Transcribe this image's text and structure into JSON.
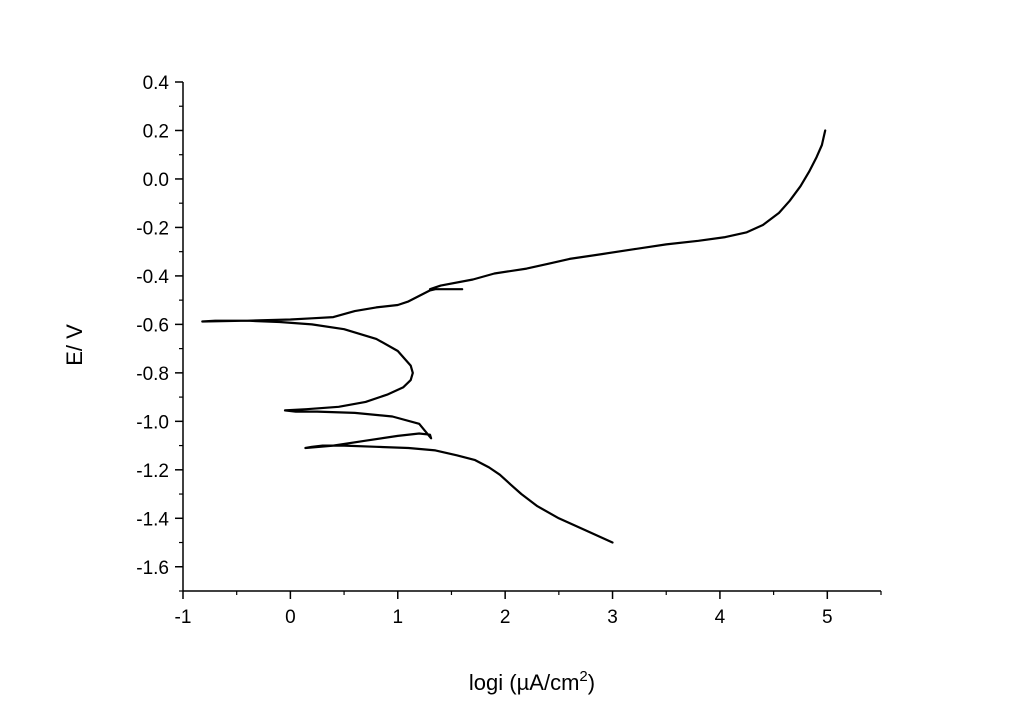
{
  "chart_data": {
    "type": "line",
    "title": "",
    "xlabel": {
      "base": "logi (µA/cm",
      "sup": "2",
      "tail": ")"
    },
    "ylabel": "E/ V",
    "xlim": [
      -1,
      5.5
    ],
    "ylim": [
      -1.7,
      0.4
    ],
    "xticks": [
      {
        "value": -1,
        "label": "-1"
      },
      {
        "value": 0,
        "label": "0"
      },
      {
        "value": 1,
        "label": "1"
      },
      {
        "value": 2,
        "label": "2"
      },
      {
        "value": 3,
        "label": "3"
      },
      {
        "value": 4,
        "label": "4"
      },
      {
        "value": 5,
        "label": "5"
      }
    ],
    "yticks": [
      {
        "value": 0.4,
        "label": "0.4"
      },
      {
        "value": 0.2,
        "label": "0.2"
      },
      {
        "value": 0.0,
        "label": "0.0"
      },
      {
        "value": -0.2,
        "label": "-0.2"
      },
      {
        "value": -0.4,
        "label": "-0.4"
      },
      {
        "value": -0.6,
        "label": "-0.6"
      },
      {
        "value": -0.8,
        "label": "-0.8"
      },
      {
        "value": -1.0,
        "label": "-1.0"
      },
      {
        "value": -1.2,
        "label": "-1.2"
      },
      {
        "value": -1.4,
        "label": "-1.4"
      },
      {
        "value": -1.6,
        "label": "-1.6"
      }
    ],
    "minor_x_step": 0.5,
    "minor_y_step": 0.1,
    "grid": false,
    "line_color": "#000000",
    "series": [
      {
        "x": [
          3.0,
          2.75,
          2.5,
          2.3,
          2.15,
          2.05,
          1.95,
          1.85,
          1.72,
          1.55,
          1.35,
          1.1,
          0.8,
          0.5,
          0.3,
          0.2,
          0.14,
          0.4,
          0.7,
          1.0,
          1.2,
          1.3,
          1.31,
          1.2,
          0.95,
          0.6,
          0.25,
          0.05,
          -0.05,
          0.15,
          0.45,
          0.7,
          0.9,
          1.05,
          1.12,
          1.14,
          1.12,
          1.0,
          0.8,
          0.5,
          0.2,
          -0.1,
          -0.4,
          -0.7,
          -0.82,
          -0.4,
          0.0,
          0.2,
          0.4,
          0.6,
          0.8,
          1.0,
          1.1,
          1.3,
          1.35,
          1.6,
          1.3,
          1.4,
          1.7,
          1.9,
          2.2,
          2.4,
          2.6,
          2.9,
          3.2,
          3.5,
          3.8,
          4.05,
          4.25,
          4.4,
          4.55,
          4.65,
          4.75,
          4.83,
          4.9,
          4.95,
          4.97,
          4.98
        ],
        "y": [
          -1.5,
          -1.45,
          -1.4,
          -1.35,
          -1.3,
          -1.26,
          -1.22,
          -1.19,
          -1.16,
          -1.14,
          -1.12,
          -1.11,
          -1.105,
          -1.1,
          -1.1,
          -1.105,
          -1.11,
          -1.1,
          -1.08,
          -1.06,
          -1.05,
          -1.055,
          -1.07,
          -1.01,
          -0.98,
          -0.965,
          -0.96,
          -0.96,
          -0.955,
          -0.95,
          -0.94,
          -0.92,
          -0.89,
          -0.86,
          -0.83,
          -0.8,
          -0.77,
          -0.71,
          -0.66,
          -0.62,
          -0.6,
          -0.59,
          -0.585,
          -0.585,
          -0.588,
          -0.585,
          -0.58,
          -0.575,
          -0.57,
          -0.545,
          -0.53,
          -0.52,
          -0.505,
          -0.46,
          -0.455,
          -0.455,
          -0.455,
          -0.44,
          -0.415,
          -0.39,
          -0.37,
          -0.35,
          -0.33,
          -0.31,
          -0.29,
          -0.27,
          -0.255,
          -0.24,
          -0.22,
          -0.19,
          -0.14,
          -0.09,
          -0.03,
          0.03,
          0.09,
          0.14,
          0.18,
          0.2
        ]
      }
    ]
  }
}
